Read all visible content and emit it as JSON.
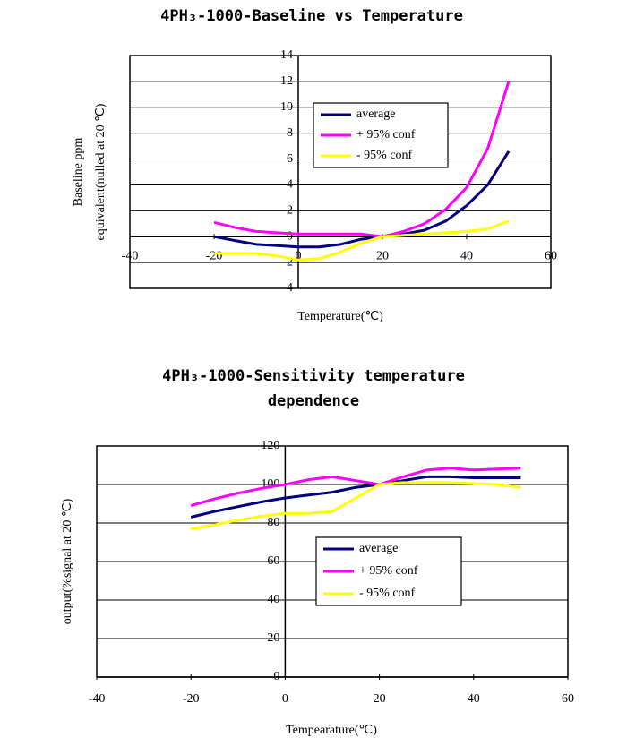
{
  "chart_data": [
    {
      "type": "line",
      "title": "4PH₃-1000-Baseline vs Temperature",
      "xlabel": "Temperature(℃)",
      "ylabel": [
        "Baseline ppm",
        "equivalent(nulled at 20 ℃)"
      ],
      "x": [
        -20,
        -15,
        -10,
        -5,
        0,
        5,
        10,
        15,
        20,
        25,
        30,
        35,
        40,
        45,
        50
      ],
      "series": [
        {
          "name": "average",
          "color": "#000080",
          "values": [
            0,
            -0.3,
            -0.6,
            -0.7,
            -0.8,
            -0.8,
            -0.6,
            -0.2,
            0,
            0.2,
            0.5,
            1.2,
            2.4,
            4,
            6.6
          ]
        },
        {
          "name": "+ 95% conf",
          "color": "#ff00ff",
          "values": [
            1.1,
            0.7,
            0.4,
            0.3,
            0.2,
            0.2,
            0.2,
            0.2,
            0,
            0.4,
            1,
            2.1,
            3.8,
            6.8,
            12
          ]
        },
        {
          "name": "- 95% conf",
          "color": "#ffff00",
          "values": [
            -1.3,
            -1.3,
            -1.3,
            -1.5,
            -1.8,
            -1.7,
            -1.2,
            -0.5,
            0,
            0.1,
            0.2,
            0.3,
            0.4,
            0.6,
            1.2
          ]
        }
      ],
      "xlim": [
        -40,
        60
      ],
      "xticks": [
        -40,
        -20,
        0,
        20,
        40,
        60
      ],
      "ylim": [
        -4,
        14
      ],
      "yticks": [
        14,
        12,
        10,
        8,
        6,
        4,
        2,
        0,
        {
          "value": -2,
          "label": "2"
        },
        {
          "value": -4,
          "label": "4"
        }
      ],
      "grid": true
    },
    {
      "type": "line",
      "title": "4PH₃-1000-Sensitivity temperature dependence",
      "xlabel": "Tempearature(℃)",
      "ylabel": [
        "output(%signal at 20 ℃)"
      ],
      "x": [
        -20,
        -15,
        -10,
        -5,
        0,
        5,
        10,
        15,
        20,
        25,
        30,
        35,
        40,
        45,
        50
      ],
      "series": [
        {
          "name": "average",
          "color": "#000080",
          "values": [
            83,
            86,
            88.5,
            91,
            93,
            94.5,
            96,
            98.5,
            100,
            102,
            104,
            104,
            103.5,
            103.5,
            103.5
          ]
        },
        {
          "name": "+ 95% conf",
          "color": "#ff00ff",
          "values": [
            89,
            92.5,
            95.5,
            98,
            100,
            102.5,
            104,
            102,
            100,
            104,
            107.5,
            108.5,
            107.5,
            108,
            108.5
          ]
        },
        {
          "name": "- 95% conf",
          "color": "#ffff00",
          "values": [
            77,
            79,
            81.5,
            83.5,
            85,
            85,
            86,
            93,
            100,
            101,
            101,
            101,
            100.5,
            100,
            98.5
          ]
        }
      ],
      "xlim": [
        -40,
        60
      ],
      "xticks": [
        -40,
        -20,
        0,
        20,
        40,
        60
      ],
      "ylim": [
        0,
        120
      ],
      "yticks": [
        120,
        100,
        80,
        60,
        40,
        20,
        0
      ],
      "grid": true
    }
  ]
}
